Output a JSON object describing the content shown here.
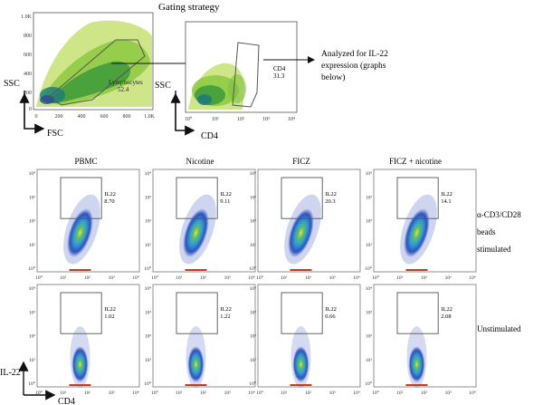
{
  "figure": {
    "title": "Gating strategy",
    "analyzed_note": [
      "Analyzed for IL-22",
      "expression (graphs",
      "below)"
    ],
    "top_left": {
      "y_label": "SSC",
      "x_label": "FSC",
      "y_ticks": [
        "1.0K",
        "800",
        "600",
        "400",
        "200",
        "0"
      ],
      "x_ticks": [
        "0",
        "200",
        "400",
        "600",
        "800",
        "1.0K"
      ],
      "gate_name": "Lymphocytes",
      "gate_value": "52.4"
    },
    "top_right": {
      "y_label": "SSC",
      "x_label": "CD4",
      "x_ticks": [
        "10⁰",
        "10¹",
        "10²",
        "10³",
        "10⁴"
      ],
      "gate_name": "CD4",
      "gate_value": "31.3"
    },
    "columns": [
      "PBMC",
      "Nicotine",
      "FICZ",
      "FICZ + nicotine"
    ],
    "row_labels": {
      "stimulated": [
        "α-CD3/CD28",
        "beads",
        "stimulated"
      ],
      "unstimulated": "Unstimulated"
    },
    "gate_name": "IL22",
    "stimulated_values": [
      "8.70",
      "9.11",
      "20.3",
      "14.1"
    ],
    "unstimulated_values": [
      "1.02",
      "1.22",
      "0.66",
      "2.08"
    ],
    "log_ticks": [
      "10⁰",
      "10¹",
      "10²",
      "10³",
      "10⁴"
    ],
    "bottom_y_label": "IL-22",
    "bottom_x_label": "CD4"
  }
}
